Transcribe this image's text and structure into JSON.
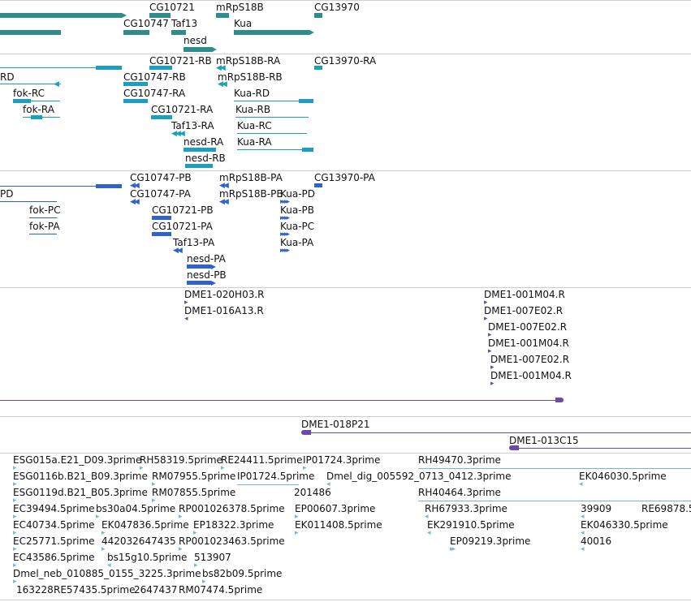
{
  "colors": {
    "gene": "#2f8c8c",
    "transcript": "#1a9fbf",
    "cds": "#2f63c8",
    "clone": "#6a4ba8",
    "est": "#7ab3e0",
    "separator": "#cfcfcf"
  },
  "gene_track": {
    "labels": [
      "CG10721",
      "mRpS18B",
      "CG13970",
      "CG10747",
      "Taf13",
      "Kua",
      "nesd"
    ]
  },
  "transcript_track": {
    "labels": [
      "RD",
      "CG10721-RB",
      "mRpS18B-RA",
      "CG13970-RA",
      "CG10747-RB",
      "mRpS18B-RB",
      "fok-RC",
      "CG10747-RA",
      "Kua-RD",
      "fok-RA",
      "CG10721-RA",
      "Kua-RB",
      "Taf13-RA",
      "Kua-RC",
      "nesd-RA",
      "Kua-RA",
      "nesd-RB"
    ]
  },
  "protein_track": {
    "labels": [
      "CG10747-PB",
      "mRpS18B-PA",
      "CG13970-PA",
      "PD",
      "CG10747-PA",
      "mRpS18B-PB",
      "Kua-PD",
      "fok-PC",
      "CG10721-PB",
      "Kua-PB",
      "fok-PA",
      "CG10721-PA",
      "Kua-PC",
      "Taf13-PA",
      "Kua-PA",
      "nesd-PA",
      "nesd-PB"
    ]
  },
  "clone_track": {
    "labels": [
      "DME1-020H03.R",
      "DME1-016A13.R",
      "DME1-001M04.R",
      "DME1-007E02.R",
      "DME1-007E02.R",
      "DME1-001M04.R",
      "DME1-007E02.R",
      "DME1-001M04.R",
      "DME1-018P21",
      "DME1-013C15"
    ]
  },
  "est_track": {
    "labels": [
      "ESG015a.E21_D09.3prime",
      "RH58319.5prime",
      "RE24411.5prime",
      "IP01724.3prime",
      "RH49470.3prime",
      "ESG0116b.B21_B09.3prime",
      "RM07955.5prime",
      "IP01724.5prime",
      "Dmel_dig_005592_0713_0412.3prime",
      "EK046030.5prime",
      "ESG0119d.B21_B05.3prime",
      "RM07855.5prime",
      "201486",
      "RH40464.3prime",
      "EC39494.5prime",
      "bs30a04.5prime",
      "RP001026378.5prime",
      "EP00607.3prime",
      "RH67933.3prime",
      "39909",
      "RE69878.5",
      "EC40734.5prime",
      "EK047836.5prime",
      "EP18322.3prime",
      "EK011408.5prime",
      "EK291910.5prime",
      "EK046330.5prime",
      "EC25771.5prime",
      "442032647435",
      "RP001023463.5prime",
      "EP09219.3prime",
      "40016",
      "EC43586.5prime",
      "bs15g10.5prime",
      "513907",
      "Dmel_neb_010885_0155_3225.3prime",
      "bs82b09.5prime",
      "163228",
      "RE57435.5prime",
      "2647437",
      "RM07474.5prime"
    ]
  }
}
